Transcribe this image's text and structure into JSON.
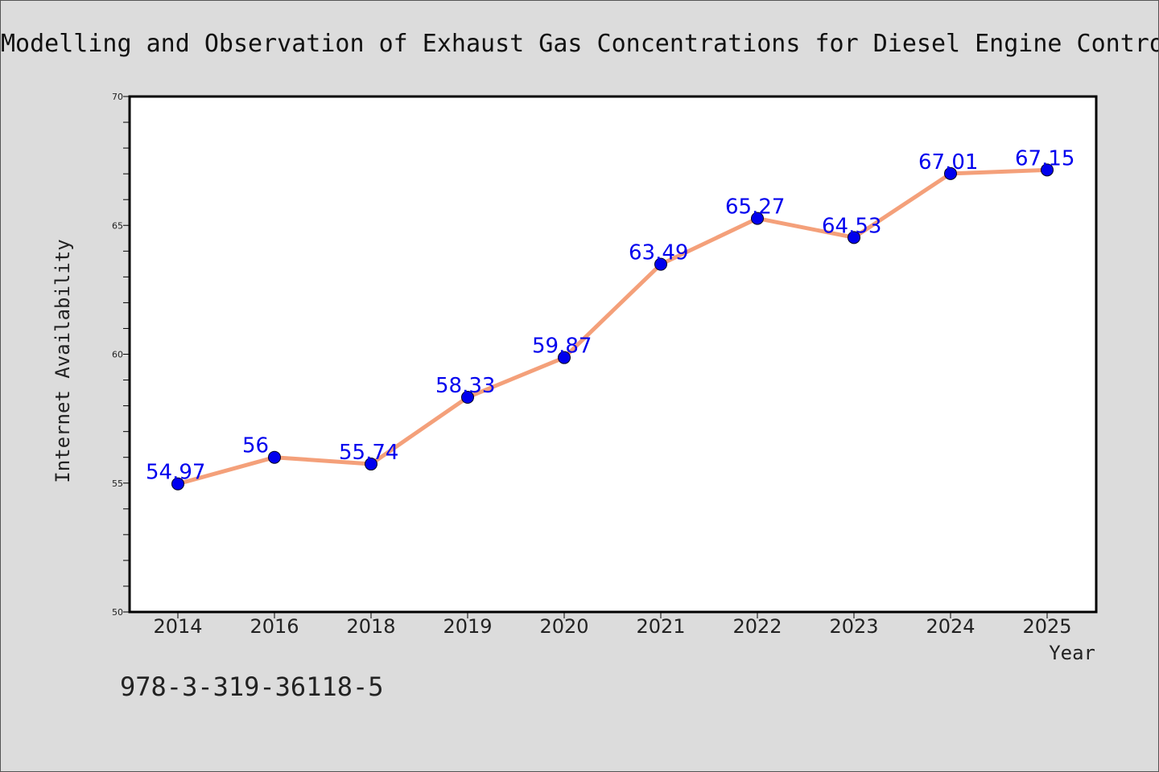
{
  "chart_data": {
    "type": "line",
    "title": "Modelling and Observation of Exhaust Gas Concentrations for Diesel Engine Control",
    "xlabel": "Year",
    "ylabel": "Internet Availability",
    "categories": [
      "2014",
      "2016",
      "2018",
      "2019",
      "2020",
      "2021",
      "2022",
      "2023",
      "2024",
      "2025"
    ],
    "series": [
      {
        "values": [
          54.97,
          56,
          55.74,
          58.33,
          59.87,
          63.49,
          65.27,
          64.53,
          67.01,
          67.15
        ],
        "labels": [
          "54.97",
          "56",
          "55.74",
          "58.33",
          "59.87",
          "63.49",
          "65.27",
          "64.53",
          "67.01",
          "67.15"
        ]
      }
    ],
    "ylim": [
      50,
      70
    ],
    "yticks": [
      "50",
      "55",
      "60",
      "65",
      "70"
    ],
    "line_color": "#f4a07a",
    "marker_color": "#0000ee",
    "label_color": "#0000ee",
    "grid": false,
    "footnote": "978-3-319-36118-5"
  }
}
